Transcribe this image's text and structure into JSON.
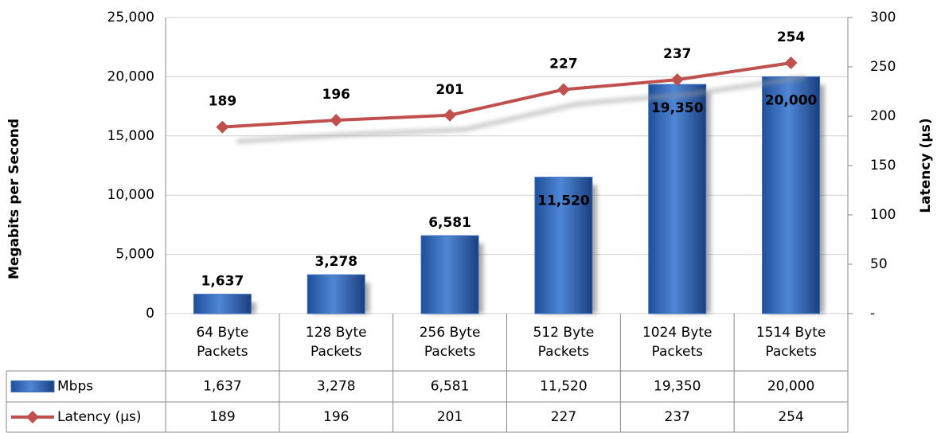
{
  "chart_data": {
    "type": "bar_line",
    "y_label": "Megabits per Second",
    "y2_label": "Latency (µs)",
    "categories": [
      "64 Byte Packets",
      "128 Byte Packets",
      "256 Byte Packets",
      "512 Byte Packets",
      "1024 Byte Packets",
      "1514 Byte Packets"
    ],
    "series": [
      {
        "name": "Mbps",
        "type": "bar",
        "color": "#3b6fc0",
        "values": [
          1637,
          3278,
          6581,
          11520,
          19350,
          20000
        ],
        "value_labels": [
          "1,637",
          "3,278",
          "6,581",
          "11,520",
          "19,350",
          "20,000"
        ]
      },
      {
        "name": "Latency (µs)",
        "type": "line",
        "axis": "y2",
        "color": "#c0504d",
        "values": [
          189,
          196,
          201,
          227,
          237,
          254
        ]
      }
    ],
    "ylim": [
      0,
      25000
    ],
    "yticks": [
      0,
      {
        "value": 5000,
        "label": "5,000"
      },
      {
        "value": 10000,
        "label": "10,000"
      },
      {
        "value": 15000,
        "label": "15,000"
      },
      {
        "value": 20000,
        "label": "20,000"
      },
      {
        "value": 25000,
        "label": "25,000"
      }
    ],
    "y2lim": [
      0,
      300
    ],
    "y2ticks": [
      {
        "value": 0,
        "label": "-"
      },
      50,
      100,
      150,
      200,
      250,
      300
    ],
    "grid": true,
    "data_table": true
  }
}
